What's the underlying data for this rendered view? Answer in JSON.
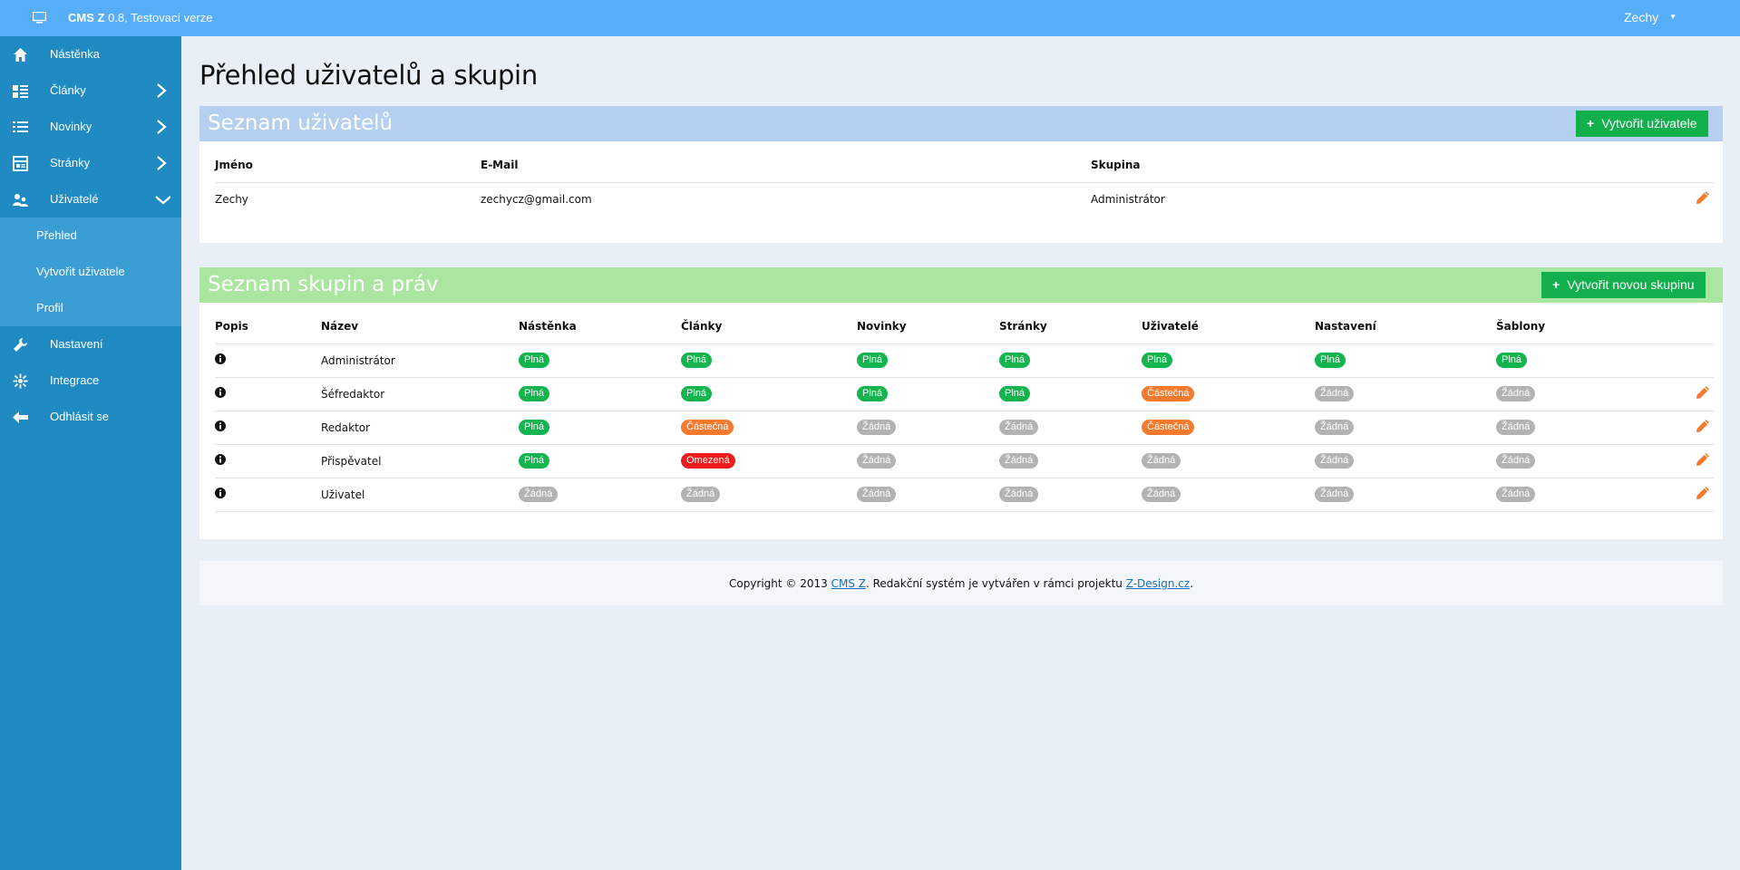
{
  "topbar": {
    "app_name": "CMS Z",
    "app_version": "0.8, Testovací verze",
    "user_name": "Zechy",
    "user_caret": "▼"
  },
  "sidebar": {
    "items": [
      {
        "label": "Nástěnka",
        "icon": "home-icon"
      },
      {
        "label": "Články",
        "icon": "articles-icon",
        "expandable": true
      },
      {
        "label": "Novinky",
        "icon": "list-icon",
        "expandable": true
      },
      {
        "label": "Stránky",
        "icon": "pages-icon",
        "expandable": true
      },
      {
        "label": "Uživatelé",
        "icon": "users-icon",
        "expanded": true
      }
    ],
    "submenu": [
      {
        "label": "Přehled"
      },
      {
        "label": "Vytvořit uživatele"
      },
      {
        "label": "Profil"
      }
    ],
    "bottom_items": [
      {
        "label": "Nastavení",
        "icon": "wrench-icon"
      },
      {
        "label": "Integrace",
        "icon": "integration-icon"
      },
      {
        "label": "Odhlásit se",
        "icon": "logout-arrow-icon"
      }
    ]
  },
  "page": {
    "title": "Přehled uživatelů a skupin"
  },
  "users_panel": {
    "title": "Seznam uživatelů",
    "create_button": "Vytvořit uživatele",
    "plus": "+",
    "columns": [
      "Jméno",
      "E-Mail",
      "Skupina"
    ],
    "rows": [
      {
        "name": "Zechy",
        "email": "zechycz@gmail.com",
        "group": "Administrátor"
      }
    ]
  },
  "groups_panel": {
    "title": "Seznam skupin a práv",
    "create_button": "Vytvořit novou skupinu",
    "plus": "+",
    "columns": [
      "Popis",
      "Název",
      "Nástěnka",
      "Články",
      "Novinky",
      "Stránky",
      "Uživatelé",
      "Nastavení",
      "Šablony"
    ],
    "rows": [
      {
        "name": "Administrátor",
        "perms": [
          "Plná",
          "Plná",
          "Plná",
          "Plná",
          "Plná",
          "Plná",
          "Plná"
        ],
        "kinds": [
          "full",
          "full",
          "full",
          "full",
          "full",
          "full",
          "full"
        ],
        "editable": false
      },
      {
        "name": "Šéfredaktor",
        "perms": [
          "Plná",
          "Plná",
          "Plná",
          "Plná",
          "Částečná",
          "Žádná",
          "Žádná"
        ],
        "kinds": [
          "full",
          "full",
          "full",
          "full",
          "partial",
          "none",
          "none"
        ],
        "editable": true
      },
      {
        "name": "Redaktor",
        "perms": [
          "Plná",
          "Částečná",
          "Žádná",
          "Žádná",
          "Částečná",
          "Žádná",
          "Žádná"
        ],
        "kinds": [
          "full",
          "partial",
          "none",
          "none",
          "partial",
          "none",
          "none"
        ],
        "editable": true
      },
      {
        "name": "Přispěvatel",
        "perms": [
          "Plná",
          "Omezená",
          "Žádná",
          "Žádná",
          "Žádná",
          "Žádná",
          "Žádná"
        ],
        "kinds": [
          "full",
          "limited",
          "none",
          "none",
          "none",
          "none",
          "none"
        ],
        "editable": true
      },
      {
        "name": "Uživatel",
        "perms": [
          "Žádná",
          "Žádná",
          "Žádná",
          "Žádná",
          "Žádná",
          "Žádná",
          "Žádná"
        ],
        "kinds": [
          "none",
          "none",
          "none",
          "none",
          "none",
          "none",
          "none"
        ],
        "editable": true
      }
    ]
  },
  "footer": {
    "prefix": "Copyright © 2013 ",
    "link1": "CMS Z",
    "middle": ". Redakční systém je vytvářen v rámci projektu ",
    "link2": "Z-Design.cz",
    "suffix": "."
  },
  "colors": {
    "topbar": "#56aef9",
    "sidebar": "#208bc3",
    "users_header": "#b4cff0",
    "groups_header": "#aae69f",
    "button_green": "#12b04d",
    "badge_full": "#14b44f",
    "badge_partial": "#f57a2d",
    "badge_limited": "#ee1c1c",
    "badge_none": "#b3b3b3",
    "edit_icon": "#f57a2d"
  }
}
